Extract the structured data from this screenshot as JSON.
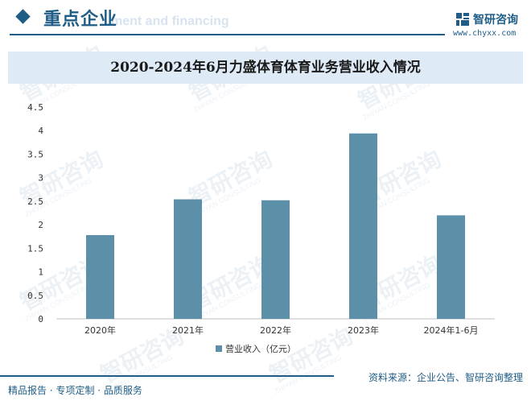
{
  "header": {
    "section_title": "重点企业",
    "bg_text": "ment and financing",
    "brand_name": "智研咨询",
    "brand_url": "www.chyxx.com"
  },
  "watermark": {
    "text": "智研咨询",
    "sub_text": "ZHIYAN CONSULTING"
  },
  "colors": {
    "accent": "#1f5d86",
    "bar": "#5b90a8",
    "title_band": "#deebf7"
  },
  "chart_data": {
    "type": "bar",
    "title": "2020-2024年6月力盛体育体育业务营业收入情况",
    "categories": [
      "2020年",
      "2021年",
      "2022年",
      "2023年",
      "2024年1-6月"
    ],
    "series": [
      {
        "name": "营业收入（亿元）",
        "values": [
          1.78,
          2.54,
          2.52,
          3.94,
          2.2
        ]
      }
    ],
    "y_ticks": [
      "0",
      "0.5",
      "1",
      "1.5",
      "2",
      "2.5",
      "3",
      "3.5",
      "4",
      "4.5"
    ],
    "ylim": [
      0,
      4.5
    ],
    "xlabel": "",
    "ylabel": "",
    "grid": false,
    "legend_position": "bottom"
  },
  "footer": {
    "slogan": "精品报告 · 专项定制 · 品质服务",
    "source": "资料来源：企业公告、智研咨询整理"
  }
}
